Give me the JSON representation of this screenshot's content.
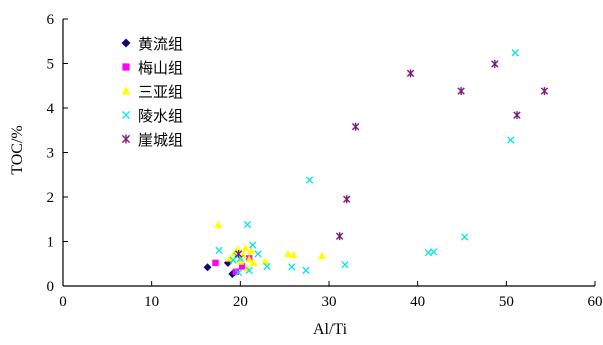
{
  "chart_data": {
    "type": "scatter",
    "title": "",
    "xlabel": "Al/Ti",
    "ylabel": "TOC/%",
    "xlim": [
      0,
      60
    ],
    "ylim": [
      0,
      6
    ],
    "xticks": [
      0,
      10,
      20,
      30,
      40,
      50,
      60
    ],
    "yticks": [
      0,
      1,
      2,
      3,
      4,
      5,
      6
    ],
    "grid": false,
    "legend_position": "top-left",
    "series": [
      {
        "name": "黄流组",
        "marker": "diamond",
        "color": "#0c0c6e",
        "points": [
          [
            16.3,
            0.42
          ],
          [
            18.6,
            0.52
          ],
          [
            19.1,
            0.27
          ]
        ]
      },
      {
        "name": "梅山组",
        "marker": "square",
        "color": "#ff00ff",
        "points": [
          [
            17.2,
            0.52
          ],
          [
            19.5,
            0.32
          ],
          [
            20.2,
            0.44
          ],
          [
            21.0,
            0.62
          ]
        ]
      },
      {
        "name": "三亚组",
        "marker": "triangle",
        "color": "#ffff00",
        "points": [
          [
            17.5,
            1.37
          ],
          [
            18.8,
            0.62
          ],
          [
            19.3,
            0.73
          ],
          [
            19.7,
            0.82
          ],
          [
            20.0,
            0.55
          ],
          [
            20.3,
            0.7
          ],
          [
            20.6,
            0.85
          ],
          [
            21.0,
            0.6
          ],
          [
            21.2,
            0.78
          ],
          [
            21.5,
            0.52
          ],
          [
            22.8,
            0.55
          ],
          [
            25.4,
            0.72
          ],
          [
            26.0,
            0.7
          ],
          [
            29.2,
            0.68
          ],
          [
            20.8,
            0.4
          ]
        ]
      },
      {
        "name": "陵水组",
        "marker": "x",
        "color": "#00e5ee",
        "points": [
          [
            17.6,
            0.8
          ],
          [
            19.2,
            0.58
          ],
          [
            19.6,
            0.68
          ],
          [
            20.0,
            0.62
          ],
          [
            20.8,
            1.38
          ],
          [
            21.4,
            0.92
          ],
          [
            22.0,
            0.72
          ],
          [
            23.0,
            0.44
          ],
          [
            25.8,
            0.43
          ],
          [
            27.4,
            0.35
          ],
          [
            27.8,
            2.38
          ],
          [
            31.8,
            0.48
          ],
          [
            41.2,
            0.75
          ],
          [
            41.8,
            0.77
          ],
          [
            45.3,
            1.1
          ],
          [
            50.5,
            3.28
          ],
          [
            51.0,
            5.24
          ],
          [
            21.0,
            0.35
          ],
          [
            19.8,
            0.3
          ]
        ]
      },
      {
        "name": "崖城组",
        "marker": "star",
        "color": "#7a1a7a",
        "points": [
          [
            19.8,
            0.72
          ],
          [
            31.2,
            1.12
          ],
          [
            32.0,
            1.95
          ],
          [
            33.0,
            3.58
          ],
          [
            39.2,
            4.78
          ],
          [
            44.9,
            4.38
          ],
          [
            48.7,
            4.99
          ],
          [
            51.2,
            3.84
          ],
          [
            54.3,
            4.38
          ]
        ]
      }
    ]
  }
}
